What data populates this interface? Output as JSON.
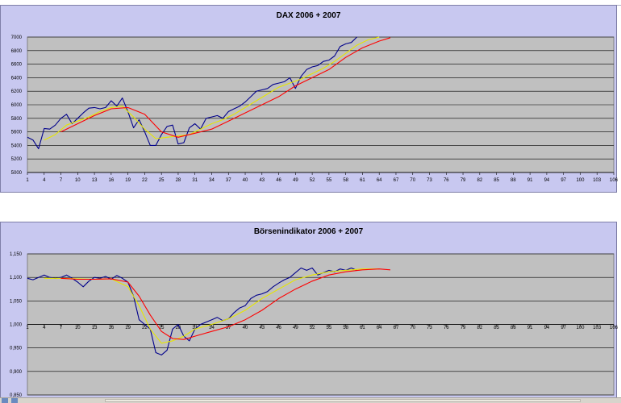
{
  "chart_data": [
    {
      "type": "line",
      "title": "DAX 2006 + 2007",
      "xlabel": "",
      "ylabel": "",
      "x_ticks": [
        "1",
        "4",
        "7",
        "10",
        "13",
        "16",
        "19",
        "22",
        "25",
        "28",
        "31",
        "34",
        "37",
        "40",
        "43",
        "46",
        "49",
        "52",
        "55",
        "58",
        "61",
        "64",
        "67",
        "70",
        "73",
        "76",
        "79",
        "82",
        "85",
        "88",
        "91",
        "94",
        "97",
        "100",
        "103",
        "106"
      ],
      "y_ticks": [
        "7000",
        "6800",
        "6600",
        "6400",
        "6200",
        "6000",
        "5800",
        "5600",
        "5400",
        "5200",
        "5000"
      ],
      "xlim": [
        1,
        106
      ],
      "ylim": [
        5000,
        7000
      ],
      "grid": true,
      "series": [
        {
          "color": "#00008b",
          "x": [
            1,
            2,
            3,
            4,
            5,
            6,
            7,
            8,
            9,
            10,
            11,
            12,
            13,
            14,
            15,
            16,
            17,
            18,
            19,
            20,
            21,
            22,
            23,
            24,
            25,
            26,
            27,
            28,
            29,
            30,
            31,
            32,
            33,
            34,
            35,
            36,
            37,
            38,
            39,
            40,
            41,
            42,
            43,
            44,
            45,
            46,
            47,
            48,
            49,
            50,
            51,
            52,
            53,
            54,
            55,
            56,
            57,
            58,
            59,
            60
          ],
          "values": [
            5520,
            5480,
            5350,
            5650,
            5640,
            5700,
            5800,
            5860,
            5720,
            5800,
            5880,
            5950,
            5960,
            5940,
            5960,
            6060,
            5980,
            6100,
            5900,
            5660,
            5780,
            5600,
            5400,
            5400,
            5560,
            5680,
            5700,
            5420,
            5440,
            5660,
            5720,
            5640,
            5800,
            5820,
            5840,
            5800,
            5900,
            5940,
            5980,
            6040,
            6120,
            6200,
            6220,
            6240,
            6300,
            6320,
            6340,
            6400,
            6240,
            6420,
            6520,
            6560,
            6580,
            6640,
            6660,
            6720,
            6860,
            6900,
            6920,
            7000
          ]
        },
        {
          "color": "#e6e600",
          "x": [
            4,
            6,
            8,
            10,
            12,
            14,
            16,
            18,
            20,
            22,
            24,
            26,
            28,
            30,
            32,
            34,
            36,
            38,
            40,
            42,
            44,
            46,
            48,
            50,
            52,
            54,
            56,
            58,
            60,
            62,
            64
          ],
          "values": [
            5480,
            5560,
            5700,
            5760,
            5820,
            5900,
            5960,
            5980,
            5820,
            5640,
            5500,
            5520,
            5540,
            5560,
            5640,
            5720,
            5780,
            5860,
            5960,
            6060,
            6160,
            6260,
            6320,
            6380,
            6460,
            6540,
            6640,
            6760,
            6880,
            6960,
            7000
          ]
        },
        {
          "color": "#ff0000",
          "x": [
            7,
            10,
            13,
            16,
            19,
            22,
            25,
            28,
            31,
            34,
            37,
            40,
            43,
            46,
            49,
            52,
            55,
            58,
            61,
            64,
            66
          ],
          "values": [
            5600,
            5720,
            5840,
            5940,
            5960,
            5860,
            5600,
            5520,
            5580,
            5640,
            5760,
            5880,
            6000,
            6120,
            6280,
            6400,
            6520,
            6700,
            6840,
            6940,
            6990
          ]
        }
      ]
    },
    {
      "type": "line",
      "title": "Börsenindikator 2006 + 2007",
      "xlabel": "",
      "ylabel": "",
      "x_ticks": [
        "1",
        "4",
        "7",
        "10",
        "13",
        "16",
        "19",
        "22",
        "25",
        "28",
        "31",
        "34",
        "37",
        "40",
        "43",
        "46",
        "49",
        "52",
        "55",
        "58",
        "61",
        "64",
        "67",
        "70",
        "73",
        "76",
        "79",
        "82",
        "85",
        "88",
        "91",
        "94",
        "97",
        "100",
        "103",
        "106"
      ],
      "y_ticks": [
        "1,150",
        "1,100",
        "1,050",
        "1,000",
        "0,950",
        "0,900",
        "0,850"
      ],
      "xlim": [
        1,
        106
      ],
      "ylim": [
        0.85,
        1.15
      ],
      "grid": true,
      "series": [
        {
          "color": "#00008b",
          "x": [
            1,
            2,
            3,
            4,
            5,
            6,
            7,
            8,
            9,
            10,
            11,
            12,
            13,
            14,
            15,
            16,
            17,
            18,
            19,
            20,
            21,
            22,
            23,
            24,
            25,
            26,
            27,
            28,
            29,
            30,
            31,
            32,
            33,
            34,
            35,
            36,
            37,
            38,
            39,
            40,
            41,
            42,
            43,
            44,
            45,
            46,
            47,
            48,
            49,
            50,
            51,
            52,
            53,
            54,
            55,
            56,
            57,
            58,
            59,
            60
          ],
          "values": [
            1.098,
            1.095,
            1.1,
            1.105,
            1.1,
            1.098,
            1.1,
            1.105,
            1.098,
            1.09,
            1.08,
            1.092,
            1.1,
            1.098,
            1.102,
            1.096,
            1.104,
            1.098,
            1.09,
            1.06,
            1.01,
            1.0,
            0.99,
            0.94,
            0.935,
            0.945,
            0.99,
            1.0,
            0.975,
            0.965,
            0.99,
            1.0,
            1.005,
            1.01,
            1.015,
            1.008,
            1.012,
            1.025,
            1.035,
            1.04,
            1.055,
            1.062,
            1.065,
            1.07,
            1.08,
            1.088,
            1.095,
            1.1,
            1.11,
            1.12,
            1.115,
            1.12,
            1.105,
            1.11,
            1.115,
            1.112,
            1.118,
            1.115,
            1.12,
            1.115
          ]
        },
        {
          "color": "#e6e600",
          "x": [
            4,
            7,
            10,
            13,
            16,
            19,
            21,
            23,
            25,
            27,
            29,
            31,
            34,
            37,
            40,
            43,
            46,
            49,
            52,
            55,
            58,
            61,
            64
          ],
          "values": [
            1.098,
            1.098,
            1.097,
            1.096,
            1.097,
            1.08,
            1.04,
            0.99,
            0.96,
            0.965,
            0.975,
            0.99,
            1.0,
            1.012,
            1.03,
            1.055,
            1.075,
            1.095,
            1.105,
            1.112,
            1.115,
            1.118,
            1.118
          ]
        },
        {
          "color": "#ff0000",
          "x": [
            7,
            10,
            13,
            16,
            19,
            21,
            23,
            25,
            27,
            29,
            31,
            34,
            37,
            40,
            43,
            46,
            49,
            52,
            55,
            58,
            61,
            64,
            66
          ],
          "values": [
            1.098,
            1.096,
            1.096,
            1.097,
            1.09,
            1.06,
            1.02,
            0.985,
            0.97,
            0.968,
            0.975,
            0.985,
            0.995,
            1.01,
            1.03,
            1.055,
            1.075,
            1.092,
            1.105,
            1.112,
            1.116,
            1.118,
            1.116
          ]
        }
      ]
    }
  ]
}
